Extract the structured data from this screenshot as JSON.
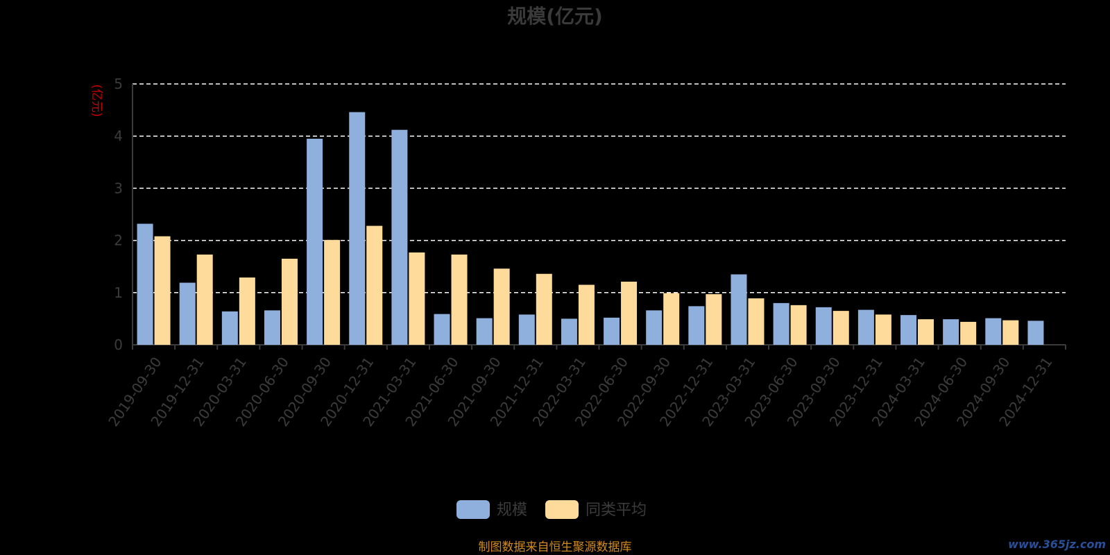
{
  "colors": {
    "background": "#000000",
    "series_primary": "#8fafdd",
    "series_secondary": "#ffdb9b",
    "title": "#3a3a3a",
    "axis_text": "#3c3c3c",
    "y_unit": "#cc0000",
    "grid": "#ffffff",
    "source": "#d08a1c",
    "watermark": "#2a4f9a"
  },
  "chart_data": {
    "type": "bar",
    "title": "规模(亿元)",
    "ylabel": "(亿元)",
    "xlabel": "",
    "ylim": [
      0,
      5
    ],
    "yticks": [
      "0",
      "1",
      "2",
      "3",
      "4",
      "5"
    ],
    "grid": true,
    "legend_position": "bottom-center",
    "categories": [
      "2019-09-30",
      "2019-12-31",
      "2020-03-31",
      "2020-06-30",
      "2020-09-30",
      "2020-12-31",
      "2021-03-31",
      "2021-06-30",
      "2021-09-30",
      "2021-12-31",
      "2022-03-31",
      "2022-06-30",
      "2022-09-30",
      "2022-12-31",
      "2023-03-31",
      "2023-06-30",
      "2023-09-30",
      "2023-12-31",
      "2024-03-31",
      "2024-06-30",
      "2024-09-30",
      "2024-12-31"
    ],
    "series": [
      {
        "name": "规模",
        "values": [
          2.32,
          1.19,
          0.64,
          0.66,
          3.95,
          4.46,
          4.12,
          0.59,
          0.51,
          0.58,
          0.5,
          0.52,
          0.66,
          0.74,
          1.35,
          0.8,
          0.72,
          0.67,
          0.57,
          0.49,
          0.51,
          0.46
        ]
      },
      {
        "name": "同类平均",
        "values": [
          2.08,
          1.73,
          1.29,
          1.65,
          2.01,
          2.28,
          1.77,
          1.73,
          1.46,
          1.36,
          1.15,
          1.21,
          0.99,
          0.97,
          0.89,
          0.76,
          0.65,
          0.58,
          0.49,
          0.44,
          0.47,
          null
        ]
      }
    ]
  },
  "footer": {
    "source": "制图数据来自恒生聚源数据库",
    "watermark": "www.365jz.com"
  }
}
